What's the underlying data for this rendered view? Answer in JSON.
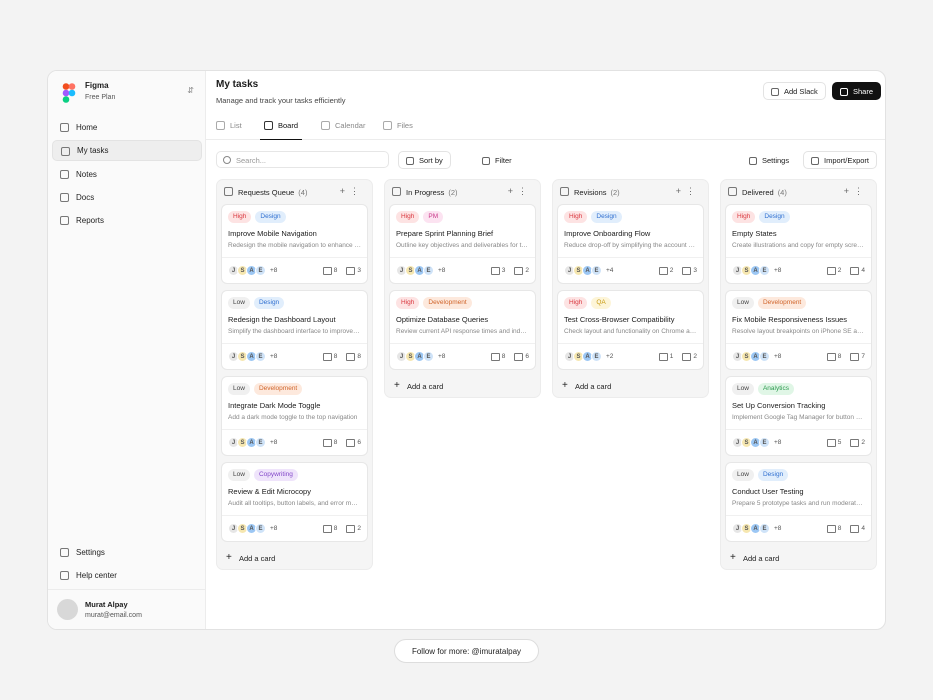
{
  "sidebar": {
    "workspace": "Figma",
    "plan": "Free Plan",
    "nav": [
      "Home",
      "My tasks",
      "Notes",
      "Docs",
      "Reports"
    ],
    "bottom": [
      "Settings",
      "Help center"
    ],
    "user": {
      "name": "Murat Alpay",
      "email": "murat@email.com"
    }
  },
  "header": {
    "title": "My tasks",
    "subtitle": "Manage and track your tasks efficiently",
    "buttons": [
      "Add Slack",
      "Share"
    ]
  },
  "tabs": [
    "List",
    "Board",
    "Calendar",
    "Files"
  ],
  "toolbar": {
    "search": "Search...",
    "sort": "Sort by",
    "filter": "Filter",
    "settings": "Settings",
    "import_export": "Import/Export"
  },
  "avatars": [
    "J",
    "S",
    "A",
    "E"
  ],
  "add_card": "Add a card",
  "columns": [
    {
      "name": "Requests Queue",
      "count": "(4)",
      "cards": [
        {
          "priority": {
            "text": "High",
            "color": "#fde3e3",
            "ink": "#d9363e"
          },
          "tag": {
            "text": "Design",
            "color": "#e1eefc",
            "ink": "#2f6fd0"
          },
          "title": "Improve Mobile Navigation",
          "description": "Redesign the mobile navigation to enhance usability",
          "more": "+8",
          "files": 8,
          "links": 3
        },
        {
          "priority": {
            "text": "Low",
            "color": "#f0f0f0",
            "ink": "#444"
          },
          "tag": {
            "text": "Design",
            "color": "#e1eefc",
            "ink": "#2f6fd0"
          },
          "title": "Redesign the Dashboard Layout",
          "description": "Simplify the dashboard interface to improve clarity",
          "more": "+8",
          "files": 8,
          "links": 8
        },
        {
          "priority": {
            "text": "Low",
            "color": "#f0f0f0",
            "ink": "#444"
          },
          "tag": {
            "text": "Development",
            "color": "#fde9dd",
            "ink": "#d0642a"
          },
          "title": "Integrate Dark Mode Toggle",
          "description": "Add a dark mode toggle to the top navigation",
          "more": "+8",
          "files": 8,
          "links": 6
        },
        {
          "priority": {
            "text": "Low",
            "color": "#f0f0f0",
            "ink": "#444"
          },
          "tag": {
            "text": "Copywriting",
            "color": "#efe4fb",
            "ink": "#8347c9"
          },
          "title": "Review & Edit Microcopy",
          "description": "Audit all tooltips, button labels, and error messages",
          "more": "+8",
          "files": 8,
          "links": 2
        }
      ]
    },
    {
      "name": "In Progress",
      "count": "(2)",
      "cards": [
        {
          "priority": {
            "text": "High",
            "color": "#fde3e3",
            "ink": "#d9363e"
          },
          "tag": {
            "text": "PM",
            "color": "#fce3f1",
            "ink": "#c93b8a"
          },
          "title": "Prepare Sprint Planning Brief",
          "description": "Outline key objectives and deliverables for the sprint",
          "more": "+8",
          "files": 3,
          "links": 2
        },
        {
          "priority": {
            "text": "High",
            "color": "#fde3e3",
            "ink": "#d9363e"
          },
          "tag": {
            "text": "Development",
            "color": "#fde9dd",
            "ink": "#d0642a"
          },
          "title": "Optimize Database Queries",
          "description": "Review current API response times and indexes",
          "more": "+8",
          "files": 8,
          "links": 6
        }
      ]
    },
    {
      "name": "Revisions",
      "count": "(2)",
      "cards": [
        {
          "priority": {
            "text": "High",
            "color": "#fde3e3",
            "ink": "#d9363e"
          },
          "tag": {
            "text": "Design",
            "color": "#e1eefc",
            "ink": "#2f6fd0"
          },
          "title": "Improve Onboarding Flow",
          "description": "Reduce drop-off by simplifying the account setup",
          "more": "+4",
          "files": 2,
          "links": 3
        },
        {
          "priority": {
            "text": "High",
            "color": "#fde3e3",
            "ink": "#d9363e"
          },
          "tag": {
            "text": "QA",
            "color": "#fdf5d8",
            "ink": "#c79a10"
          },
          "title": "Test Cross-Browser Compatibility",
          "description": "Check layout and functionality on Chrome and Safari",
          "more": "+2",
          "files": 1,
          "links": 2
        }
      ]
    },
    {
      "name": "Delivered",
      "count": "(4)",
      "cards": [
        {
          "priority": {
            "text": "High",
            "color": "#fde3e3",
            "ink": "#d9363e"
          },
          "tag": {
            "text": "Design",
            "color": "#e1eefc",
            "ink": "#2f6fd0"
          },
          "title": "Empty States",
          "description": "Create illustrations and copy for empty screens",
          "more": "+8",
          "files": 2,
          "links": 4
        },
        {
          "priority": {
            "text": "Low",
            "color": "#f0f0f0",
            "ink": "#444"
          },
          "tag": {
            "text": "Development",
            "color": "#fde9dd",
            "ink": "#d0642a"
          },
          "title": "Fix Mobile Responsiveness Issues",
          "description": "Resolve layout breakpoints on iPhone SE and tablets",
          "more": "+8",
          "files": 8,
          "links": 7
        },
        {
          "priority": {
            "text": "Low",
            "color": "#f0f0f0",
            "ink": "#444"
          },
          "tag": {
            "text": "Analytics",
            "color": "#e0f6e6",
            "ink": "#2c9a4f"
          },
          "title": "Set Up Conversion Tracking",
          "description": "Implement Google Tag Manager for button clicks",
          "more": "+8",
          "files": 5,
          "links": 2
        },
        {
          "priority": {
            "text": "Low",
            "color": "#f0f0f0",
            "ink": "#444"
          },
          "tag": {
            "text": "Design",
            "color": "#e1eefc",
            "ink": "#2f6fd0"
          },
          "title": "Conduct User Testing",
          "description": "Prepare 5 prototype tasks and run moderated sessions",
          "more": "+8",
          "files": 8,
          "links": 4
        }
      ]
    }
  ],
  "footer": "Follow for more: @imuratalpay"
}
